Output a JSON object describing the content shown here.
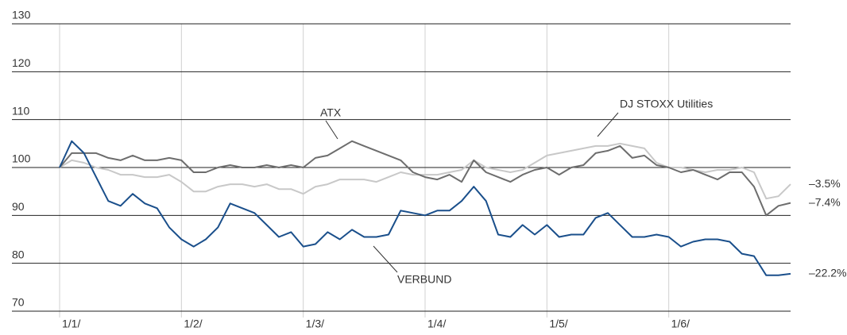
{
  "chart_data": {
    "type": "line",
    "categories": [
      "1/1/",
      null,
      null,
      null,
      null,
      null,
      null,
      null,
      null,
      null,
      "1/2/",
      null,
      null,
      null,
      null,
      null,
      null,
      null,
      null,
      null,
      "1/3/",
      null,
      null,
      null,
      null,
      null,
      null,
      null,
      null,
      null,
      "1/4/",
      null,
      null,
      null,
      null,
      null,
      null,
      null,
      null,
      null,
      "1/5/",
      null,
      null,
      null,
      null,
      null,
      null,
      null,
      null,
      null,
      "1/6/",
      null,
      null,
      null,
      null,
      null,
      null,
      null,
      null,
      null,
      null
    ],
    "series": [
      {
        "name": "DJ STOXX Utilities",
        "color": "#c8c8c8",
        "end_label": "–3.5%",
        "values": [
          100,
          101.5,
          101,
          100,
          99.5,
          98.5,
          98.5,
          98,
          98,
          98.5,
          97,
          95,
          95,
          96,
          96.5,
          96.5,
          96,
          96.5,
          95.5,
          95.5,
          94.5,
          96,
          96.5,
          97.5,
          97.5,
          97.5,
          97,
          98,
          99,
          98.5,
          98.5,
          98.5,
          99,
          99.5,
          101.5,
          100,
          99.5,
          99,
          99.5,
          101,
          102.5,
          103,
          103.5,
          104,
          104.5,
          104.5,
          105,
          104.5,
          104,
          101,
          100,
          100,
          99.5,
          99,
          99.5,
          99.5,
          100,
          99,
          93.5,
          94,
          96.5
        ]
      },
      {
        "name": "ATX",
        "color": "#6d6d6d",
        "end_label": "–7.4%",
        "values": [
          100,
          103,
          103,
          103,
          102,
          101.5,
          102.5,
          101.5,
          101.5,
          102,
          101.5,
          99,
          99,
          100,
          100.5,
          100,
          100,
          100.5,
          100,
          100.5,
          100,
          102,
          102.5,
          104,
          105.5,
          104.5,
          103.5,
          102.5,
          101.5,
          99,
          98,
          97.5,
          98.5,
          97,
          101.5,
          99,
          98,
          97,
          98.5,
          99.5,
          100,
          98.5,
          100,
          100.5,
          103,
          103.5,
          104.5,
          102,
          102.5,
          100.5,
          100,
          99,
          99.5,
          98.5,
          97.5,
          99,
          99,
          96,
          90,
          92,
          92.6
        ]
      },
      {
        "name": "VERBUND",
        "color": "#1a4f8b",
        "end_label": "–22.2%",
        "values": [
          100,
          105.5,
          103,
          98,
          93,
          92,
          94.5,
          92.5,
          91.5,
          87.5,
          85,
          83.5,
          85,
          87.5,
          92.5,
          91.5,
          90.5,
          88,
          85.5,
          86.5,
          83.5,
          84,
          86.5,
          85,
          87,
          85.5,
          85.5,
          86,
          91,
          90.5,
          90,
          91,
          91,
          93,
          96,
          93,
          86,
          85.5,
          88,
          86,
          88,
          85.5,
          86,
          86,
          89.5,
          90.5,
          88,
          85.5,
          85.5,
          86,
          85.5,
          83.5,
          84.5,
          85,
          85,
          84.5,
          82,
          81.5,
          77.5,
          77.5,
          77.8
        ]
      }
    ],
    "ylim": [
      70,
      130
    ],
    "yticks": [
      70,
      80,
      90,
      100,
      110,
      120,
      130
    ],
    "grid": true
  }
}
